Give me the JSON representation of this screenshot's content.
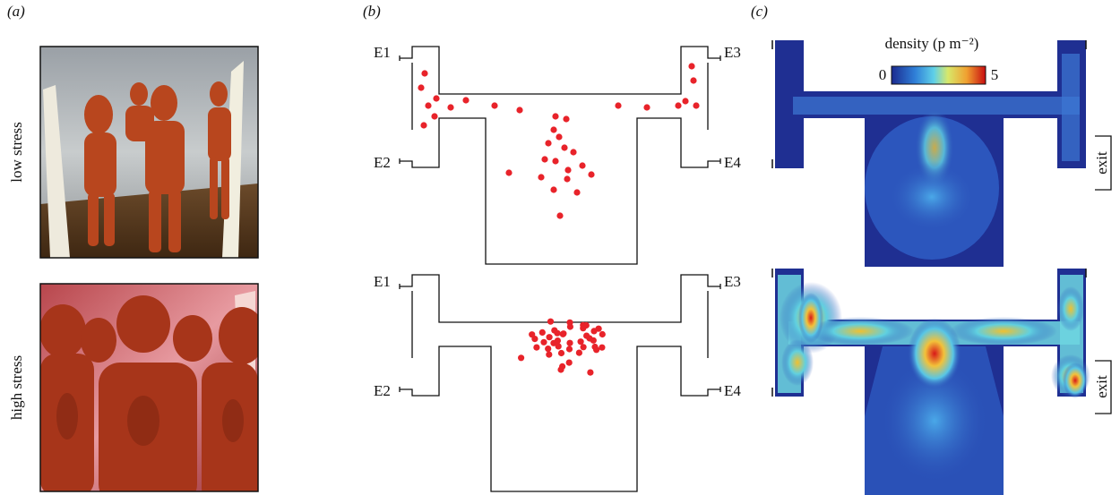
{
  "panels": [
    "(a)",
    "(b)",
    "(c)"
  ],
  "row_labels": [
    "low stress",
    "high stress"
  ],
  "exits_top": [
    "E1",
    "E2",
    "E3",
    "E4"
  ],
  "exits_bottom": [
    "E1",
    "E2",
    "E3",
    "E4"
  ],
  "colorbar": {
    "title": "density (p m⁻²)",
    "min": 0,
    "max": 5
  },
  "exit_labels": [
    "exit",
    "exit"
  ]
}
